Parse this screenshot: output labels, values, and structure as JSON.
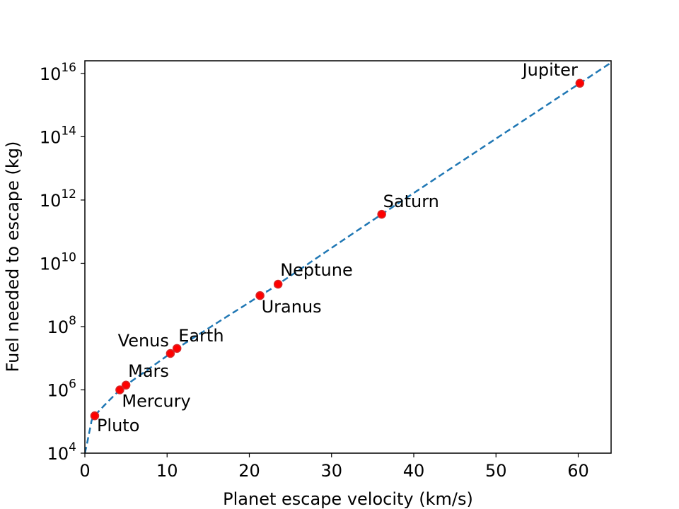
{
  "chart_data": {
    "type": "scatter",
    "xlabel": "Planet escape velocity (km/s)",
    "ylabel": "Fuel needed to escape (kg)",
    "xlim": [
      0,
      64
    ],
    "ylim_log10": [
      4,
      16.4
    ],
    "yscale": "log",
    "grid": false,
    "x_ticks": [
      0,
      10,
      20,
      30,
      40,
      50,
      60
    ],
    "y_ticks": [
      {
        "base": "10",
        "exp": "4",
        "log10": 4
      },
      {
        "base": "10",
        "exp": "6",
        "log10": 6
      },
      {
        "base": "10",
        "exp": "8",
        "log10": 8
      },
      {
        "base": "10",
        "exp": "10",
        "log10": 10
      },
      {
        "base": "10",
        "exp": "12",
        "log10": 12
      },
      {
        "base": "10",
        "exp": "14",
        "log10": 14
      },
      {
        "base": "10",
        "exp": "16",
        "log10": 16
      }
    ],
    "points": [
      {
        "label": "Pluto",
        "x": 1.2,
        "log10_y": 5.18
      },
      {
        "label": "Mercury",
        "x": 4.25,
        "log10_y": 6.0
      },
      {
        "label": "Mars",
        "x": 5.0,
        "log10_y": 6.15
      },
      {
        "label": "Venus",
        "x": 10.4,
        "log10_y": 7.15
      },
      {
        "label": "Earth",
        "x": 11.2,
        "log10_y": 7.31
      },
      {
        "label": "Uranus",
        "x": 21.3,
        "log10_y": 8.98
      },
      {
        "label": "Neptune",
        "x": 23.5,
        "log10_y": 9.34
      },
      {
        "label": "Saturn",
        "x": 36.1,
        "log10_y": 11.55
      },
      {
        "label": "Jupiter",
        "x": 60.2,
        "log10_y": 15.69
      }
    ],
    "curve": {
      "style": "dashed",
      "color": "#1f77b4",
      "description": "fit through points"
    },
    "marker_color": "#ff0000",
    "marker_edge_color": "#d62728"
  }
}
